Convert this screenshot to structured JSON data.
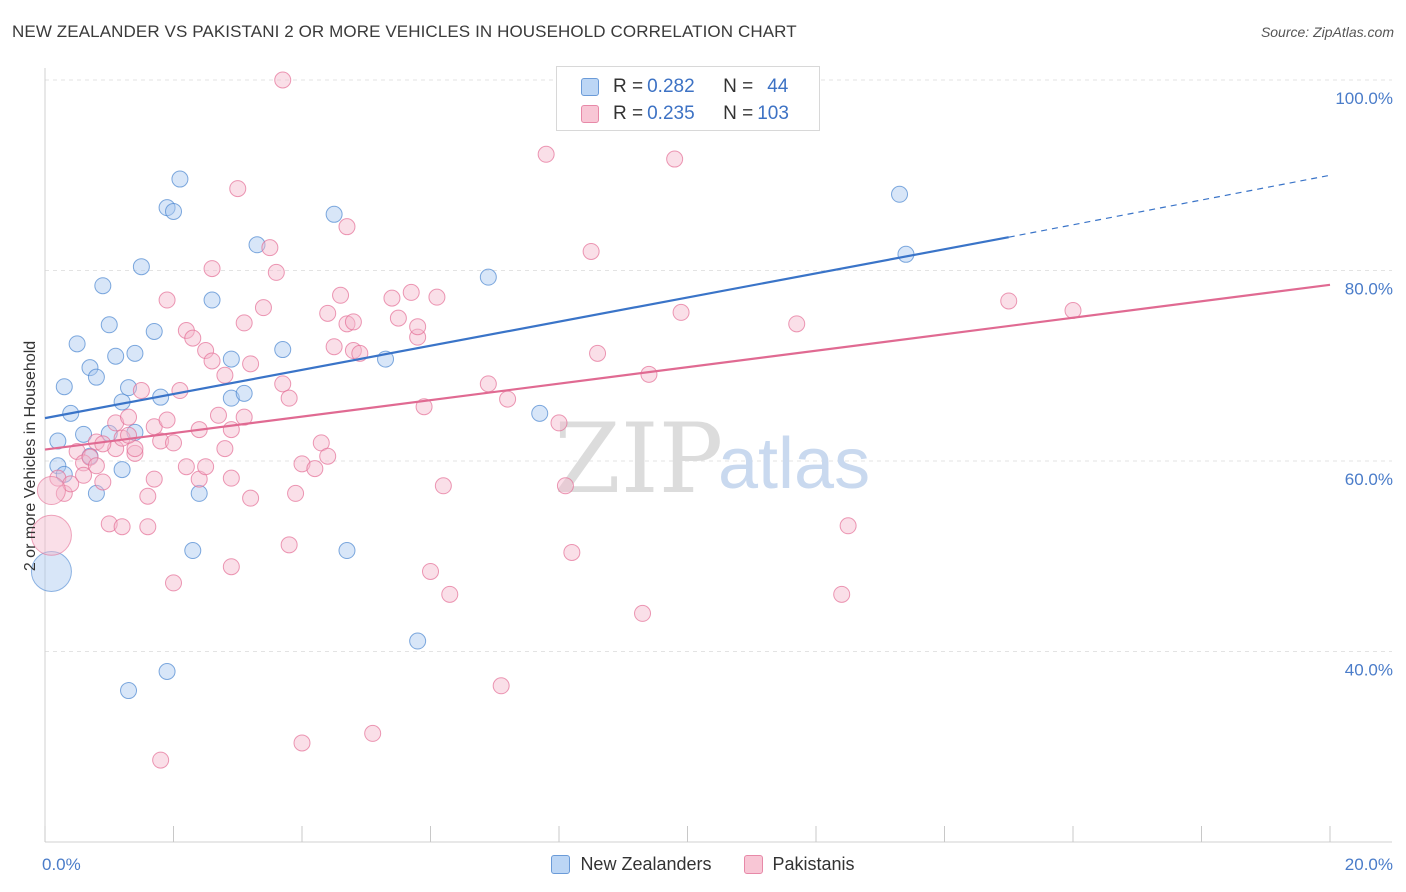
{
  "header": {
    "title": "NEW ZEALANDER VS PAKISTANI 2 OR MORE VEHICLES IN HOUSEHOLD CORRELATION CHART",
    "source": "Source: ZipAtlas.com"
  },
  "legend_box": {
    "rows": [
      {
        "r_key": "R = ",
        "r_value": "0.282",
        "n_key": "N = ",
        "n_value": "44",
        "color": "#a8c8f0"
      },
      {
        "r_key": "R = ",
        "r_value": "0.235",
        "n_key": "N = ",
        "n_value": "103",
        "color": "#f5b8cb"
      }
    ]
  },
  "watermark": {
    "zip": "ZIP",
    "atlas": "atlas"
  },
  "chart_data": {
    "type": "scatter",
    "xlabel": "",
    "ylabel": "2 or more Vehicles in Household",
    "xlim": [
      0,
      20
    ],
    "ylim": [
      20,
      100
    ],
    "x_tick_labels": [
      {
        "value": 0,
        "label": "0.0%"
      },
      {
        "value": 20,
        "label": "20.0%"
      }
    ],
    "y_tick_labels": [
      {
        "value": 40,
        "label": "40.0%"
      },
      {
        "value": 60,
        "label": "60.0%"
      },
      {
        "value": 80,
        "label": "80.0%"
      },
      {
        "value": 100,
        "label": "100.0%"
      }
    ],
    "grid": true,
    "legend_position": "bottom",
    "series": [
      {
        "name": "New Zealanders",
        "color": "#4a86d0",
        "fill": "#a8c8f0",
        "trend": {
          "x0": 0,
          "y0": 64.5,
          "x1": 15,
          "y1": 83.5,
          "dash_to_x": 20,
          "dash_to_y": 90,
          "color": "#3a74c8"
        },
        "points": [
          [
            0.2,
            62.1
          ],
          [
            0.3,
            67.8
          ],
          [
            0.4,
            65.0
          ],
          [
            0.5,
            72.3
          ],
          [
            0.6,
            62.8
          ],
          [
            0.7,
            69.8
          ],
          [
            0.7,
            60.5
          ],
          [
            0.8,
            68.8
          ],
          [
            0.8,
            56.6
          ],
          [
            0.9,
            78.4
          ],
          [
            1.0,
            74.3
          ],
          [
            1.0,
            62.9
          ],
          [
            1.1,
            71.0
          ],
          [
            1.2,
            66.2
          ],
          [
            1.2,
            59.1
          ],
          [
            1.3,
            67.7
          ],
          [
            1.3,
            35.9
          ],
          [
            1.4,
            63.0
          ],
          [
            1.4,
            71.3
          ],
          [
            1.5,
            80.4
          ],
          [
            1.7,
            73.6
          ],
          [
            1.8,
            66.7
          ],
          [
            1.9,
            37.9
          ],
          [
            1.9,
            86.6
          ],
          [
            2.0,
            86.2
          ],
          [
            2.1,
            89.6
          ],
          [
            2.3,
            50.6
          ],
          [
            2.4,
            56.6
          ],
          [
            2.6,
            76.9
          ],
          [
            2.9,
            70.7
          ],
          [
            2.9,
            66.6
          ],
          [
            3.1,
            67.1
          ],
          [
            3.3,
            82.7
          ],
          [
            3.7,
            71.7
          ],
          [
            4.5,
            85.9
          ],
          [
            4.7,
            50.6
          ],
          [
            5.3,
            70.7
          ],
          [
            5.8,
            41.1
          ],
          [
            6.9,
            79.3
          ],
          [
            7.7,
            65.0
          ],
          [
            13.3,
            88.0
          ],
          [
            13.4,
            81.7
          ],
          [
            0.2,
            59.5
          ],
          [
            0.3,
            58.6
          ]
        ],
        "big_points": [
          [
            0.1,
            48.4,
            20
          ]
        ]
      },
      {
        "name": "Pakistanis",
        "color": "#e46e95",
        "fill": "#f5b8cb",
        "trend": {
          "x0": 0,
          "y0": 61.2,
          "x1": 20,
          "y1": 78.5,
          "color": "#e06a92"
        },
        "points": [
          [
            0.2,
            58.2
          ],
          [
            0.3,
            56.6
          ],
          [
            0.4,
            57.6
          ],
          [
            0.5,
            61.0
          ],
          [
            0.6,
            59.8
          ],
          [
            0.7,
            60.4
          ],
          [
            0.8,
            59.5
          ],
          [
            0.8,
            62.0
          ],
          [
            0.9,
            57.8
          ],
          [
            1.0,
            53.4
          ],
          [
            1.1,
            64.0
          ],
          [
            1.1,
            61.3
          ],
          [
            1.2,
            62.4
          ],
          [
            1.2,
            53.1
          ],
          [
            1.3,
            64.6
          ],
          [
            1.4,
            60.8
          ],
          [
            1.4,
            61.3
          ],
          [
            1.5,
            67.4
          ],
          [
            1.6,
            53.1
          ],
          [
            1.6,
            56.3
          ],
          [
            1.7,
            63.6
          ],
          [
            1.7,
            58.1
          ],
          [
            1.8,
            62.1
          ],
          [
            1.8,
            28.6
          ],
          [
            1.9,
            64.3
          ],
          [
            1.9,
            76.9
          ],
          [
            2.0,
            47.2
          ],
          [
            2.0,
            61.9
          ],
          [
            2.1,
            67.4
          ],
          [
            2.2,
            59.4
          ],
          [
            2.2,
            73.7
          ],
          [
            2.3,
            72.9
          ],
          [
            2.4,
            63.3
          ],
          [
            2.4,
            58.1
          ],
          [
            2.5,
            59.4
          ],
          [
            2.5,
            71.6
          ],
          [
            2.6,
            80.2
          ],
          [
            2.7,
            64.8
          ],
          [
            2.8,
            69.0
          ],
          [
            2.8,
            61.3
          ],
          [
            2.9,
            63.3
          ],
          [
            2.9,
            48.9
          ],
          [
            3.0,
            88.6
          ],
          [
            3.1,
            74.5
          ],
          [
            3.1,
            64.6
          ],
          [
            3.2,
            56.1
          ],
          [
            3.2,
            70.2
          ],
          [
            3.4,
            76.1
          ],
          [
            3.5,
            82.4
          ],
          [
            3.6,
            79.8
          ],
          [
            3.7,
            68.1
          ],
          [
            3.8,
            51.2
          ],
          [
            3.8,
            66.6
          ],
          [
            3.9,
            56.6
          ],
          [
            4.0,
            59.7
          ],
          [
            4.0,
            30.4
          ],
          [
            4.2,
            59.2
          ],
          [
            4.3,
            61.9
          ],
          [
            4.4,
            60.5
          ],
          [
            4.4,
            75.5
          ],
          [
            4.5,
            72.0
          ],
          [
            4.6,
            77.4
          ],
          [
            4.7,
            74.4
          ],
          [
            4.7,
            84.6
          ],
          [
            4.8,
            74.6
          ],
          [
            4.8,
            71.6
          ],
          [
            4.9,
            71.3
          ],
          [
            5.1,
            31.4
          ],
          [
            5.4,
            77.1
          ],
          [
            5.5,
            75.0
          ],
          [
            5.7,
            77.7
          ],
          [
            5.8,
            73.0
          ],
          [
            5.8,
            74.1
          ],
          [
            5.9,
            65.7
          ],
          [
            6.0,
            48.4
          ],
          [
            6.1,
            77.2
          ],
          [
            6.2,
            57.4
          ],
          [
            6.3,
            46.0
          ],
          [
            6.9,
            68.1
          ],
          [
            7.1,
            36.4
          ],
          [
            7.2,
            66.5
          ],
          [
            7.8,
            92.2
          ],
          [
            8.0,
            64.0
          ],
          [
            8.1,
            57.4
          ],
          [
            8.2,
            50.4
          ],
          [
            8.5,
            82.0
          ],
          [
            8.6,
            71.3
          ],
          [
            9.3,
            44.0
          ],
          [
            9.4,
            69.1
          ],
          [
            9.8,
            91.7
          ],
          [
            9.9,
            75.6
          ],
          [
            11.6,
            100.0
          ],
          [
            11.7,
            74.4
          ],
          [
            12.4,
            46.0
          ],
          [
            12.5,
            53.2
          ],
          [
            15.0,
            76.8
          ],
          [
            16.0,
            75.8
          ],
          [
            3.7,
            100.0
          ],
          [
            2.9,
            58.2
          ],
          [
            1.3,
            62.7
          ],
          [
            2.6,
            70.5
          ],
          [
            0.6,
            58.5
          ],
          [
            0.9,
            61.8
          ]
        ],
        "big_points": [
          [
            0.1,
            52.2,
            20
          ],
          [
            0.1,
            56.9,
            14
          ]
        ]
      }
    ]
  }
}
